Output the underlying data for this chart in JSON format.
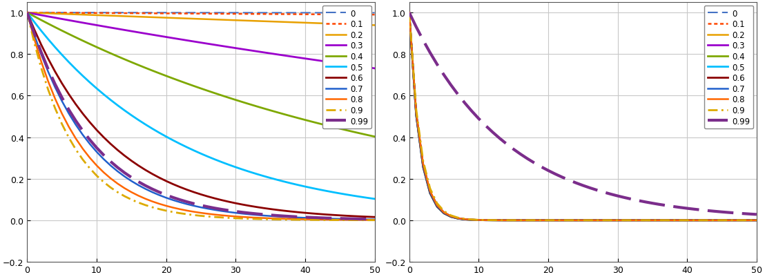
{
  "rho_values": [
    0,
    0.1,
    0.2,
    0.3,
    0.4,
    0.5,
    0.6,
    0.7,
    0.8,
    0.9,
    0.99
  ],
  "rho_labels": [
    "0",
    "0.1",
    "0.2",
    "0.3",
    "0.4",
    "0.5",
    "0.6",
    "0.7",
    "0.8",
    "0.9",
    "0.99"
  ],
  "color_map": {
    "0": "#4472C4",
    "0.1": "#FF4500",
    "0.2": "#E8A000",
    "0.3": "#9B00CC",
    "0.4": "#7EA800",
    "0.5": "#00BFFF",
    "0.6": "#8B0000",
    "0.7": "#2060CC",
    "0.8": "#FF6600",
    "0.9": "#DDAA00",
    "0.99": "#7B2D8B"
  },
  "taus_gl": {
    "0": 50000,
    "0.1": 5000,
    "0.2": 800,
    "0.3": 160,
    "0.4": 55,
    "0.5": 22,
    "0.6": 12,
    "0.7": 9.0,
    "0.8": 7.5,
    "0.9": 6.5,
    "0.99": 9.5
  },
  "taus_nr": {
    "0": 1.55,
    "0.1": 1.52,
    "0.2": 1.5,
    "0.3": 1.48,
    "0.4": 1.47,
    "0.5": 1.47,
    "0.6": 1.48,
    "0.7": 1.5,
    "0.8": 1.53,
    "0.9": 1.6,
    "0.99": 14.0
  },
  "n_lags": 51,
  "xlim": [
    0,
    50
  ],
  "ylim_left": [
    -0.2,
    1.05
  ],
  "ylim_right": [
    -0.2,
    1.05
  ],
  "background_color": "#ffffff",
  "grid_color": "#c8c8c8",
  "yticks": [
    -0.2,
    0.0,
    0.2,
    0.4,
    0.6,
    0.8,
    1.0
  ],
  "xticks": [
    0,
    10,
    20,
    30,
    40,
    50
  ]
}
